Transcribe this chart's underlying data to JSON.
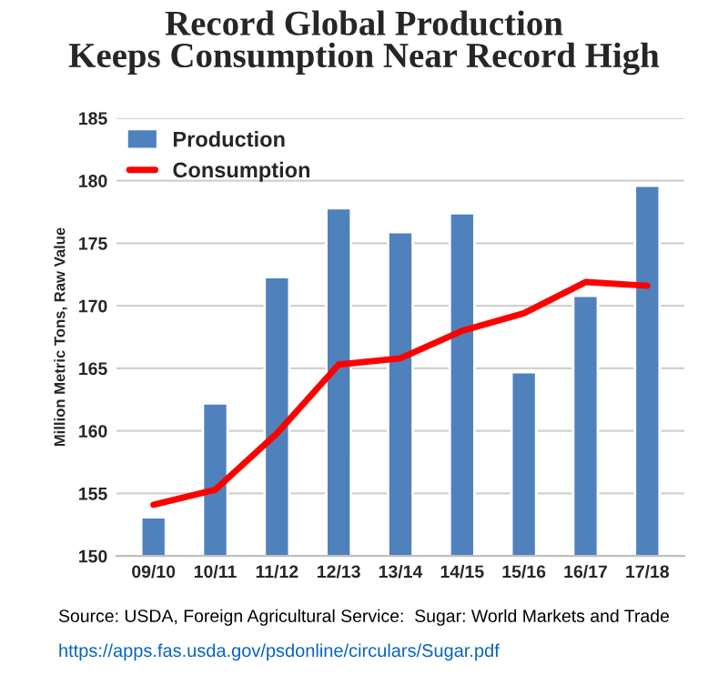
{
  "chart_data": {
    "type": "bar",
    "title": "Record Global Production\nKeeps Consumption Near Record High",
    "ylabel": "Million Metric Tons, Raw Value",
    "categories": [
      "09/10",
      "10/11",
      "11/12",
      "12/13",
      "13/14",
      "14/15",
      "15/16",
      "16/17",
      "17/18"
    ],
    "series": [
      {
        "name": "Production",
        "color": "#4f81bd",
        "values": [
          153.1,
          162.2,
          172.3,
          177.8,
          175.9,
          177.4,
          164.7,
          170.8,
          179.6
        ]
      },
      {
        "name": "Consumption",
        "type": "line",
        "color": "#ff0000",
        "values": [
          154.1,
          155.3,
          159.8,
          165.3,
          165.8,
          168.0,
          169.4,
          171.9,
          171.6
        ]
      }
    ],
    "ylim": [
      150,
      185
    ],
    "yticks": [
      150,
      155,
      160,
      165,
      170,
      175,
      180,
      185
    ],
    "grid": "y",
    "legend": "top left",
    "marker": "none",
    "line_style": "solid",
    "annotations": [
      "Source: USDA, Foreign Agricultural Service:  Sugar: World Markets and Trade",
      "https://apps.fas.usda.gov/psdonline/circulars/Sugar.pdf"
    ]
  }
}
